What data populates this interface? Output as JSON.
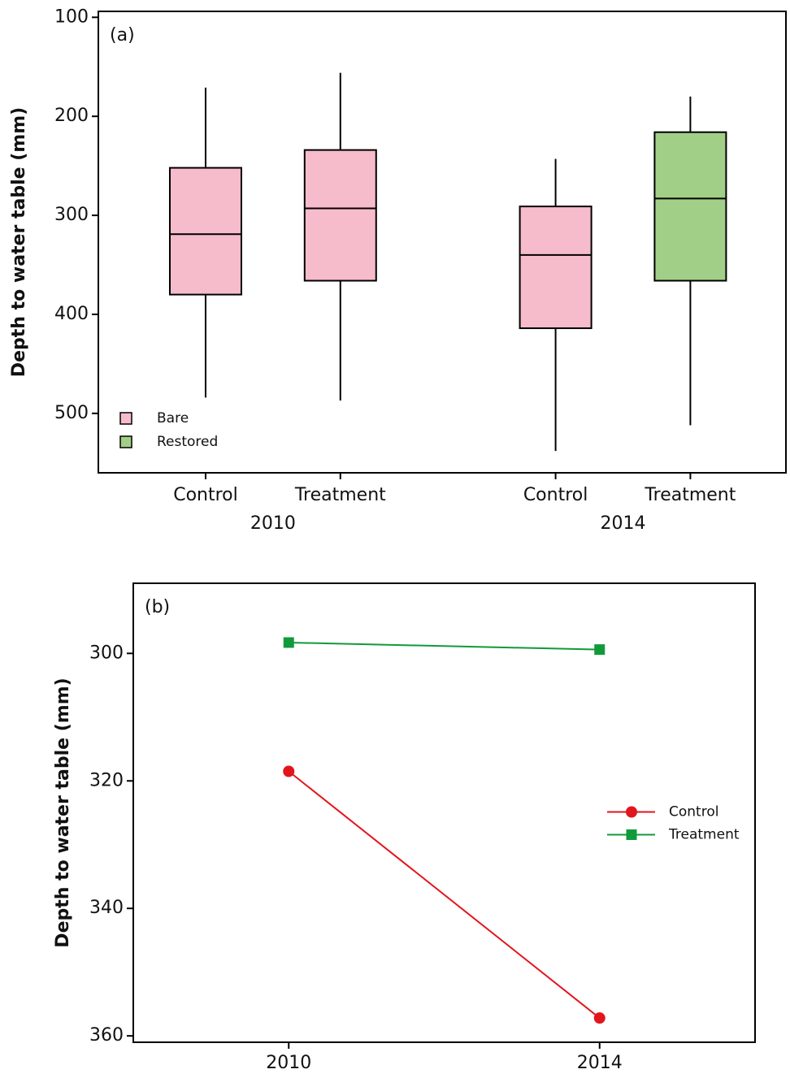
{
  "chart_data": [
    {
      "type": "box",
      "panel_label": "(a)",
      "y_label": "Depth to water table (mm)",
      "categories": [
        "Control",
        "Treatment",
        "Control",
        "Treatment"
      ],
      "groups": [
        "2010",
        "2014"
      ],
      "series": [
        {
          "name": "Bare",
          "color": "#f6bccb",
          "values": [
            [
              171,
              252,
              319,
              380,
              484
            ],
            [
              156,
              234,
              293,
              366,
              487
            ],
            [
              243,
              291,
              340,
              414,
              538
            ],
            null
          ]
        },
        {
          "name": "Restored",
          "color": "#a2cf87",
          "values": [
            null,
            null,
            null,
            [
              180,
              216,
              283,
              366,
              512
            ]
          ]
        }
      ],
      "ylim": [
        94,
        560
      ],
      "yticks": [
        100,
        200,
        300,
        400,
        500
      ],
      "y_inverted": true,
      "grid": false,
      "legend": "lower-left"
    },
    {
      "type": "line",
      "panel_label": "(b)",
      "y_label": "Depth to water table (mm)",
      "categories": [
        "2010",
        "2014"
      ],
      "series": [
        {
          "name": "Control",
          "color": "#e2151d",
          "marker": "circle",
          "values": [
            318.5,
            357.2
          ]
        },
        {
          "name": "Treatment",
          "color": "#109a3a",
          "marker": "square",
          "values": [
            298.3,
            299.4
          ]
        }
      ],
      "ylim": [
        289,
        361
      ],
      "yticks": [
        300,
        320,
        340,
        360
      ],
      "y_inverted": true,
      "grid": false,
      "legend": "right"
    }
  ]
}
